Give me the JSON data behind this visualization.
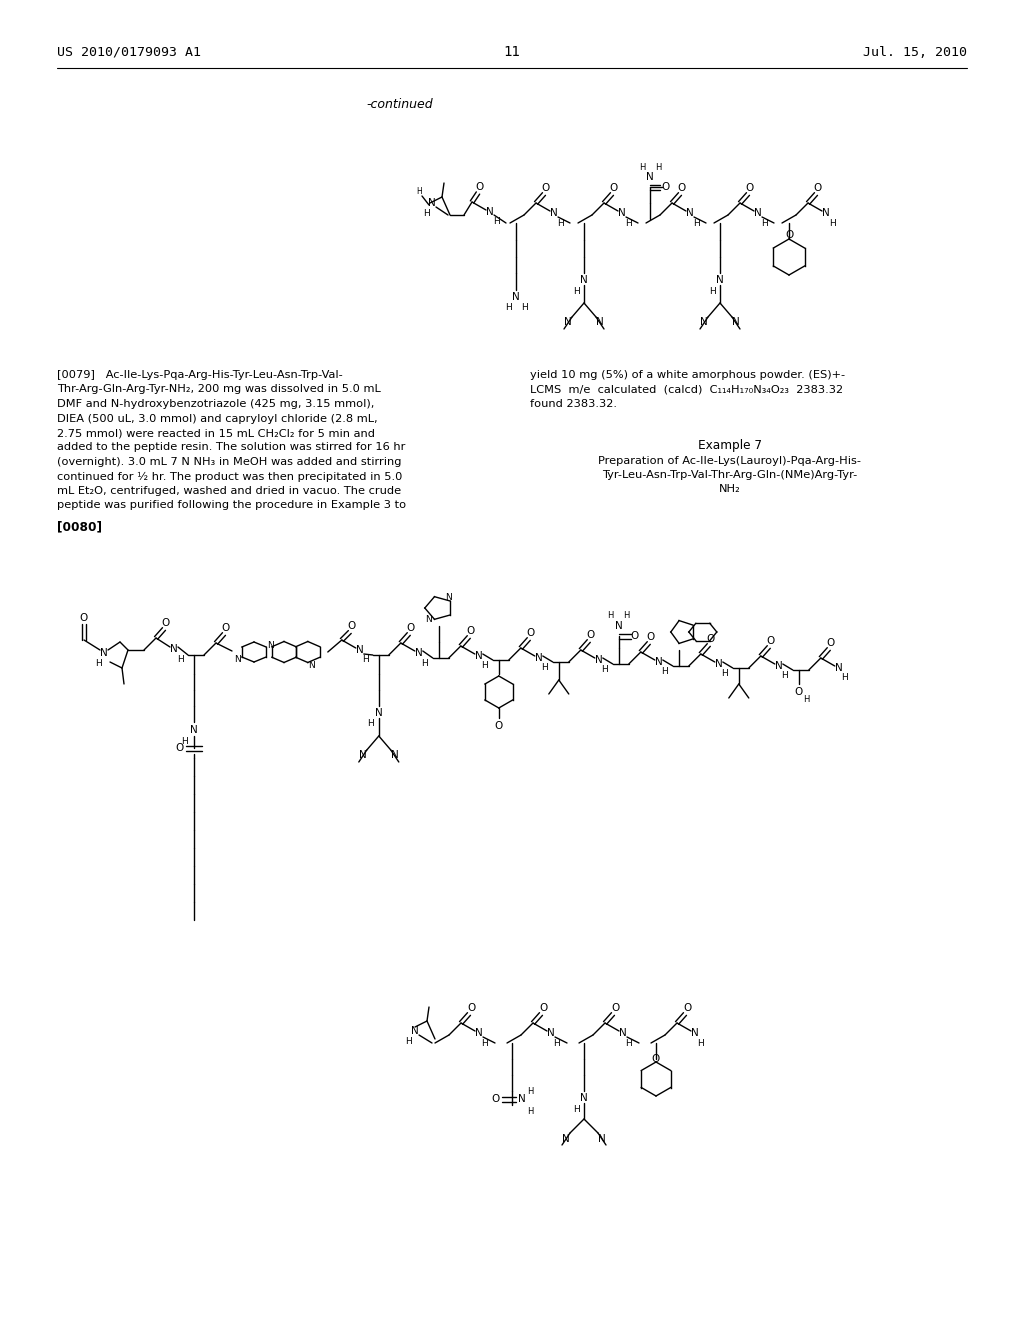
{
  "background_color": "#ffffff",
  "header_left": "US 2010/0179093 A1",
  "header_right": "Jul. 15, 2010",
  "page_number": "11",
  "continued_label": "-continued",
  "left_col_lines": [
    "[0079]   Ac-Ile-Lys-Pqa-Arg-His-Tyr-Leu-Asn-Trp-Val-",
    "Thr-Arg-Gln-Arg-Tyr-NH₂, 200 mg was dissolved in 5.0 mL",
    "DMF and N-hydroxybenzotriazole (425 mg, 3.15 mmol),",
    "DIEA (500 uL, 3.0 mmol) and capryloyl chloride (2.8 mL,",
    "2.75 mmol) were reacted in 15 mL CH₂Cl₂ for 5 min and",
    "added to the peptide resin. The solution was stirred for 16 hr",
    "(overnight). 3.0 mL 7 N NH₃ in MeOH was added and stirring",
    "continued for ½ hr. The product was then precipitated in 5.0",
    "mL Et₂O, centrifuged, washed and dried in vacuo. The crude",
    "peptide was purified following the procedure in Example 3 to"
  ],
  "right_col_lines": [
    "yield 10 mg (5%) of a white amorphous powder. (ES)+-",
    "LCMS  m/e  calculated  (calcd)  C₁₁₄H₁₇₀N₃₄O₂₃  2383.32",
    "found 2383.32."
  ],
  "example7_lines": [
    "Example 7",
    "Preparation of Ac-Ile-Lys(Lauroyl)-Pqa-Arg-His-",
    "Tyr-Leu-Asn-Trp-Val-Thr-Arg-Gln-(NMe)Arg-Tyr-",
    "NH₂"
  ],
  "para0080_label": "[0080]"
}
